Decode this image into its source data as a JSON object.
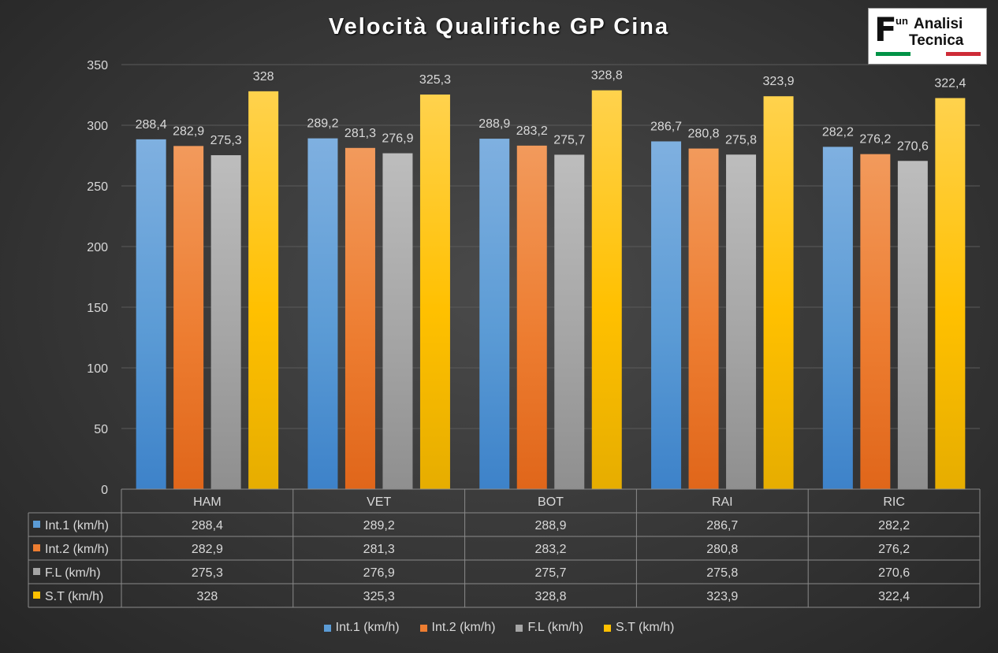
{
  "title": "Velocità Qualifiche GP Cina",
  "logo": {
    "mark": "F",
    "small": "un",
    "line1": "Analisi",
    "line2": "Tecnica"
  },
  "chart_data": {
    "type": "bar",
    "title": "Velocità Qualifiche GP Cina",
    "categories": [
      "HAM",
      "VET",
      "BOT",
      "RAI",
      "RIC"
    ],
    "series": [
      {
        "name": "Int.1 (km/h)",
        "values": [
          288.4,
          289.2,
          288.9,
          286.7,
          282.2
        ],
        "labels": [
          "288,4",
          "289,2",
          "288,9",
          "286,7",
          "282,2"
        ],
        "color": "#5b9bd5",
        "color_light": "#7fb0e0",
        "color_dark": "#3d82c9"
      },
      {
        "name": "Int.2 (km/h)",
        "values": [
          282.9,
          281.3,
          283.2,
          280.8,
          276.2
        ],
        "labels": [
          "282,9",
          "281,3",
          "283,2",
          "280,8",
          "276,2"
        ],
        "color": "#ed7d31",
        "color_light": "#f29a5c",
        "color_dark": "#e0661a"
      },
      {
        "name": "F.L (km/h)",
        "values": [
          275.3,
          276.9,
          275.7,
          275.8,
          270.6
        ],
        "labels": [
          "275,3",
          "276,9",
          "275,7",
          "275,8",
          "270,6"
        ],
        "color": "#a5a5a5",
        "color_light": "#bdbdbd",
        "color_dark": "#8f8f8f"
      },
      {
        "name": "S.T (km/h)",
        "values": [
          328,
          325.3,
          328.8,
          323.9,
          322.4
        ],
        "labels": [
          "328",
          "325,3",
          "328,8",
          "323,9",
          "322,4"
        ],
        "color": "#ffc000",
        "color_light": "#ffd24d",
        "color_dark": "#e6ad00"
      }
    ],
    "ylim": [
      0,
      350
    ],
    "yticks": [
      0,
      50,
      100,
      150,
      200,
      250,
      300,
      350
    ],
    "grid": true,
    "data_table": true,
    "legend": "bottom-center"
  }
}
